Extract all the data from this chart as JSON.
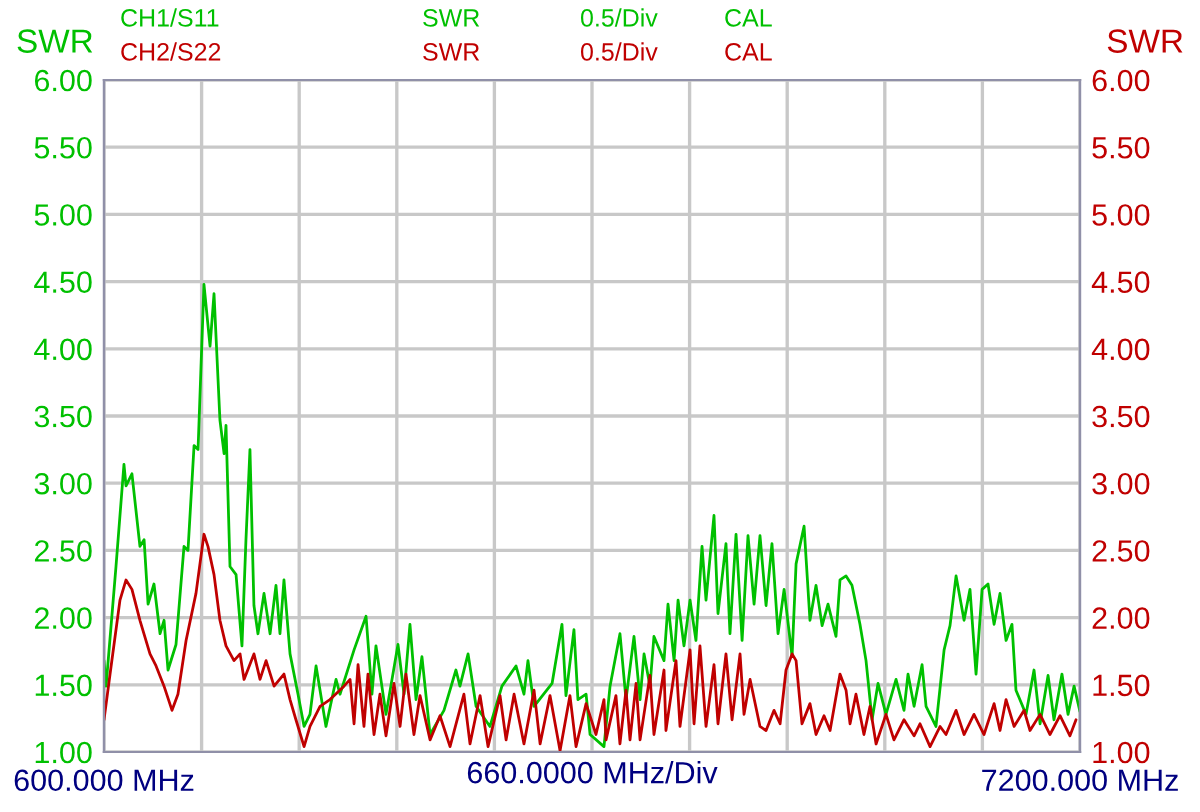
{
  "chart_data": {
    "type": "line",
    "xlabel": "660.0000 MHz/Div",
    "ylabel": "SWR",
    "y2label": "SWR",
    "annotations": [
      "CH1/S11",
      "SWR",
      "0.5/Div",
      "CAL",
      "CH2/S22",
      "SWR",
      "0.5/Div",
      "CAL"
    ],
    "xlim": [
      600,
      7200
    ],
    "xticks": [
      {
        "value": 600,
        "label": "600.000 MHz"
      },
      {
        "value": 1260,
        "label": null
      },
      {
        "value": 1920,
        "label": null
      },
      {
        "value": 2580,
        "label": null
      },
      {
        "value": 3240,
        "label": null
      },
      {
        "value": 3900,
        "label": null
      },
      {
        "value": 4560,
        "label": null
      },
      {
        "value": 5220,
        "label": null
      },
      {
        "value": 5880,
        "label": null
      },
      {
        "value": 6540,
        "label": null
      },
      {
        "value": 7200,
        "label": "7200.000 MHz"
      }
    ],
    "ylim": [
      1,
      6
    ],
    "yticks": [
      {
        "value": 1,
        "label": "1.00"
      },
      {
        "value": 1.5,
        "label": "1.50"
      },
      {
        "value": 2,
        "label": "2.00"
      },
      {
        "value": 2.5,
        "label": "2.50"
      },
      {
        "value": 3,
        "label": "3.00"
      },
      {
        "value": 3.5,
        "label": "3.50"
      },
      {
        "value": 4,
        "label": "4.00"
      },
      {
        "value": 4.5,
        "label": "4.50"
      },
      {
        "value": 5,
        "label": "5.00"
      },
      {
        "value": 5.5,
        "label": "5.50"
      },
      {
        "value": 6,
        "label": "6.00"
      }
    ],
    "y2lim": [
      1,
      6
    ],
    "y2ticks": [
      {
        "value": 1,
        "label": "1.00"
      },
      {
        "value": 1.5,
        "label": "1.50"
      },
      {
        "value": 2,
        "label": "2.00"
      },
      {
        "value": 2.5,
        "label": "2.50"
      },
      {
        "value": 3,
        "label": "3.00"
      },
      {
        "value": 3.5,
        "label": "3.50"
      },
      {
        "value": 4,
        "label": "4.00"
      },
      {
        "value": 4.5,
        "label": "4.50"
      },
      {
        "value": 5,
        "label": "5.00"
      },
      {
        "value": 5.5,
        "label": "5.50"
      },
      {
        "value": 6,
        "label": "6.00"
      }
    ],
    "grid": true,
    "series": [
      {
        "color": "#00c000",
        "x": [
          600,
          614,
          681,
          735,
          749,
          789,
          843,
          871,
          898,
          938,
          979,
          1006,
          1033,
          1087,
          1141,
          1168,
          1209,
          1236,
          1276,
          1317,
          1344,
          1384,
          1412,
          1425,
          1452,
          1493,
          1533,
          1560,
          1587,
          1614,
          1641,
          1682,
          1723,
          1763,
          1790,
          1817,
          1858,
          1912,
          1953,
          1993,
          2034,
          2101,
          2169,
          2196,
          2291,
          2372,
          2412,
          2439,
          2507,
          2588,
          2629,
          2669,
          2710,
          2750,
          2805,
          2899,
          2980,
          3007,
          3062,
          3116,
          3210,
          3291,
          3386,
          3440,
          3467,
          3508,
          3630,
          3697,
          3724,
          3778,
          3805,
          3860,
          3887,
          3981,
          4022,
          4089,
          4130,
          4184,
          4225,
          4252,
          4292,
          4319,
          4387,
          4414,
          4455,
          4482,
          4522,
          4563,
          4603,
          4644,
          4671,
          4725,
          4752,
          4806,
          4833,
          4874,
          4915,
          4955,
          4996,
          5036,
          5077,
          5117,
          5158,
          5199,
          5253,
          5280,
          5334,
          5374,
          5415,
          5456,
          5496,
          5550,
          5577,
          5618,
          5658,
          5712,
          5753,
          5794,
          5834,
          5888,
          5956,
          6010,
          6037,
          6078,
          6132,
          6159,
          6226,
          6281,
          6321,
          6362,
          6416,
          6456,
          6497,
          6538,
          6578,
          6619,
          6659,
          6700,
          6740,
          6767,
          6835,
          6889,
          6930,
          6984,
          7024,
          7078,
          7119,
          7160,
          7200
        ],
        "values": [
          1.68,
          1.49,
          2.38,
          3.14,
          2.98,
          3.07,
          2.53,
          2.58,
          2.1,
          2.25,
          1.88,
          1.98,
          1.61,
          1.8,
          2.53,
          2.5,
          3.28,
          3.25,
          4.48,
          4.02,
          4.41,
          3.47,
          3.22,
          3.43,
          2.38,
          2.32,
          1.79,
          2.58,
          3.25,
          2.09,
          1.88,
          2.18,
          1.88,
          2.24,
          1.88,
          2.28,
          1.73,
          1.43,
          1.19,
          1.28,
          1.64,
          1.19,
          1.54,
          1.43,
          1.76,
          2.01,
          1.43,
          1.79,
          1.28,
          1.8,
          1.43,
          1.95,
          1.39,
          1.71,
          1.13,
          1.31,
          1.61,
          1.49,
          1.73,
          1.34,
          1.19,
          1.49,
          1.64,
          1.43,
          1.68,
          1.34,
          1.51,
          1.95,
          1.42,
          1.91,
          1.39,
          1.43,
          1.13,
          1.04,
          1.49,
          1.88,
          1.39,
          1.86,
          1.39,
          1.73,
          1.49,
          1.86,
          1.68,
          2.1,
          1.68,
          2.13,
          1.79,
          2.13,
          1.83,
          2.53,
          2.13,
          2.76,
          2.03,
          2.55,
          1.88,
          2.62,
          1.83,
          2.61,
          2.1,
          2.61,
          2.09,
          2.55,
          1.88,
          2.21,
          1.71,
          2.4,
          2.68,
          1.98,
          2.24,
          1.94,
          2.1,
          1.86,
          2.28,
          2.31,
          2.24,
          1.95,
          1.68,
          1.24,
          1.51,
          1.28,
          1.54,
          1.31,
          1.58,
          1.34,
          1.65,
          1.34,
          1.19,
          1.76,
          1.94,
          2.31,
          1.98,
          2.21,
          1.58,
          2.21,
          2.25,
          1.95,
          2.18,
          1.83,
          1.95,
          1.46,
          1.28,
          1.61,
          1.21,
          1.57,
          1.24,
          1.58,
          1.28,
          1.49,
          1.3
        ]
      },
      {
        "color": "#c00000",
        "axis": "y2",
        "x": [
          600,
          641,
          708,
          749,
          789,
          843,
          911,
          952,
          1006,
          1060,
          1100,
          1155,
          1222,
          1276,
          1303,
          1344,
          1384,
          1425,
          1479,
          1520,
          1547,
          1614,
          1655,
          1696,
          1750,
          1817,
          1858,
          1898,
          1953,
          1993,
          2061,
          2128,
          2223,
          2264,
          2291,
          2318,
          2358,
          2385,
          2426,
          2466,
          2507,
          2561,
          2602,
          2642,
          2696,
          2737,
          2805,
          2872,
          2940,
          3034,
          3075,
          3143,
          3197,
          3278,
          3319,
          3373,
          3440,
          3508,
          3549,
          3616,
          3684,
          3751,
          3792,
          3860,
          3927,
          3981,
          3995,
          4062,
          4089,
          4130,
          4157,
          4198,
          4225,
          4292,
          4319,
          4387,
          4400,
          4468,
          4495,
          4563,
          4590,
          4630,
          4671,
          4725,
          4752,
          4806,
          4847,
          4901,
          4928,
          4969,
          5036,
          5077,
          5131,
          5172,
          5212,
          5253,
          5280,
          5320,
          5374,
          5415,
          5469,
          5510,
          5577,
          5618,
          5645,
          5685,
          5739,
          5780,
          5821,
          5888,
          5942,
          6010,
          6078,
          6118,
          6186,
          6254,
          6294,
          6362,
          6416,
          6483,
          6551,
          6619,
          6659,
          6700,
          6754,
          6822,
          6862,
          6930,
          6997,
          7065,
          7132,
          7173
        ],
        "values": [
          1.24,
          1.58,
          2.13,
          2.28,
          2.21,
          1.98,
          1.73,
          1.64,
          1.49,
          1.31,
          1.43,
          1.83,
          2.18,
          2.62,
          2.53,
          2.32,
          1.98,
          1.79,
          1.68,
          1.73,
          1.54,
          1.73,
          1.54,
          1.68,
          1.49,
          1.58,
          1.39,
          1.24,
          1.04,
          1.19,
          1.34,
          1.39,
          1.49,
          1.54,
          1.21,
          1.65,
          1.19,
          1.58,
          1.13,
          1.43,
          1.12,
          1.51,
          1.19,
          1.58,
          1.13,
          1.42,
          1.09,
          1.27,
          1.04,
          1.43,
          1.06,
          1.42,
          1.04,
          1.42,
          1.09,
          1.43,
          1.06,
          1.46,
          1.06,
          1.42,
          1.01,
          1.42,
          1.04,
          1.36,
          1.13,
          1.39,
          1.09,
          1.42,
          1.06,
          1.46,
          1.09,
          1.51,
          1.09,
          1.57,
          1.13,
          1.61,
          1.16,
          1.68,
          1.19,
          1.76,
          1.21,
          1.79,
          1.19,
          1.65,
          1.21,
          1.73,
          1.24,
          1.73,
          1.28,
          1.54,
          1.19,
          1.16,
          1.31,
          1.21,
          1.61,
          1.73,
          1.68,
          1.21,
          1.36,
          1.13,
          1.27,
          1.16,
          1.58,
          1.46,
          1.21,
          1.43,
          1.13,
          1.34,
          1.06,
          1.28,
          1.09,
          1.24,
          1.12,
          1.21,
          1.04,
          1.19,
          1.13,
          1.31,
          1.13,
          1.28,
          1.13,
          1.36,
          1.16,
          1.39,
          1.19,
          1.31,
          1.16,
          1.28,
          1.13,
          1.27,
          1.12,
          1.24
        ]
      }
    ]
  }
}
